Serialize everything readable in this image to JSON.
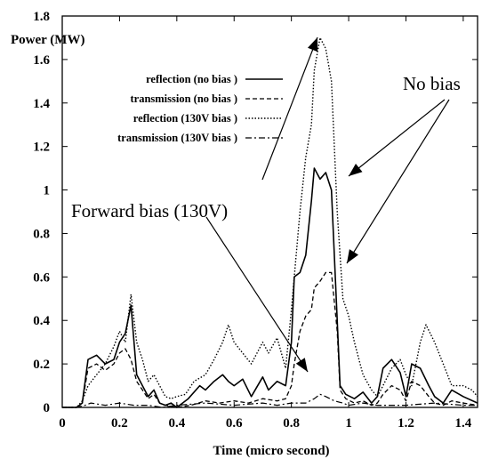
{
  "chart_data": {
    "type": "line",
    "ylabel": "Power (MW)",
    "xlabel": "Time  (micro second)",
    "xlim": [
      0,
      1.45
    ],
    "ylim": [
      0,
      1.8
    ],
    "x_ticks": [
      "0",
      "0.2",
      "0.4",
      "0.6",
      "0.8",
      "1",
      "1.2",
      "1.4"
    ],
    "x_tick_values": [
      0,
      0.2,
      0.4,
      0.6,
      0.8,
      1.0,
      1.2,
      1.4
    ],
    "y_ticks": [
      "0",
      "0.2",
      "0.4",
      "0.6",
      "0.8",
      "1",
      "1.2",
      "1.4",
      "1.6",
      "1.8"
    ],
    "y_tick_values": [
      0,
      0.2,
      0.4,
      0.6,
      0.8,
      1.0,
      1.2,
      1.4,
      1.6,
      1.8
    ],
    "legend_position": "upper-left",
    "grid": false,
    "series": [
      {
        "name": "reflection (no bias )",
        "style": "solid",
        "x": [
          0.0,
          0.05,
          0.07,
          0.09,
          0.12,
          0.15,
          0.18,
          0.2,
          0.22,
          0.24,
          0.26,
          0.28,
          0.3,
          0.32,
          0.34,
          0.36,
          0.38,
          0.4,
          0.42,
          0.44,
          0.48,
          0.5,
          0.53,
          0.56,
          0.58,
          0.6,
          0.63,
          0.66,
          0.7,
          0.72,
          0.75,
          0.78,
          0.8,
          0.81,
          0.83,
          0.85,
          0.87,
          0.88,
          0.9,
          0.92,
          0.94,
          0.96,
          0.97,
          0.99,
          1.02,
          1.05,
          1.08,
          1.1,
          1.12,
          1.15,
          1.18,
          1.2,
          1.22,
          1.25,
          1.28,
          1.3,
          1.33,
          1.36,
          1.4,
          1.45
        ],
        "y": [
          0.0,
          0.0,
          0.02,
          0.22,
          0.24,
          0.2,
          0.22,
          0.3,
          0.34,
          0.47,
          0.15,
          0.1,
          0.05,
          0.08,
          0.02,
          0.01,
          0.02,
          0.0,
          0.02,
          0.04,
          0.1,
          0.08,
          0.12,
          0.15,
          0.12,
          0.1,
          0.13,
          0.05,
          0.14,
          0.08,
          0.12,
          0.1,
          0.3,
          0.6,
          0.62,
          0.7,
          0.95,
          1.1,
          1.05,
          1.08,
          1.0,
          0.4,
          0.1,
          0.06,
          0.04,
          0.07,
          0.02,
          0.05,
          0.18,
          0.22,
          0.16,
          0.05,
          0.2,
          0.18,
          0.1,
          0.05,
          0.02,
          0.08,
          0.05,
          0.02
        ]
      },
      {
        "name": "transmission (no bias )",
        "style": "dashed",
        "x": [
          0.0,
          0.05,
          0.07,
          0.09,
          0.12,
          0.15,
          0.18,
          0.2,
          0.22,
          0.24,
          0.26,
          0.28,
          0.3,
          0.32,
          0.34,
          0.36,
          0.4,
          0.45,
          0.5,
          0.55,
          0.6,
          0.65,
          0.7,
          0.75,
          0.78,
          0.8,
          0.81,
          0.83,
          0.85,
          0.87,
          0.88,
          0.9,
          0.92,
          0.94,
          0.96,
          0.97,
          0.99,
          1.02,
          1.05,
          1.08,
          1.1,
          1.12,
          1.15,
          1.18,
          1.2,
          1.22,
          1.25,
          1.28,
          1.3,
          1.33,
          1.36,
          1.4,
          1.45
        ],
        "y": [
          0.0,
          0.0,
          0.02,
          0.18,
          0.2,
          0.17,
          0.2,
          0.25,
          0.27,
          0.22,
          0.12,
          0.08,
          0.04,
          0.06,
          0.02,
          0.01,
          0.0,
          0.01,
          0.03,
          0.02,
          0.03,
          0.02,
          0.04,
          0.03,
          0.04,
          0.1,
          0.2,
          0.35,
          0.42,
          0.45,
          0.55,
          0.58,
          0.62,
          0.62,
          0.35,
          0.08,
          0.04,
          0.02,
          0.03,
          0.01,
          0.02,
          0.06,
          0.1,
          0.08,
          0.03,
          0.12,
          0.1,
          0.05,
          0.02,
          0.01,
          0.03,
          0.02,
          0.01
        ]
      },
      {
        "name": "reflection (130V bias )",
        "style": "dotted",
        "x": [
          0.0,
          0.05,
          0.07,
          0.09,
          0.12,
          0.15,
          0.18,
          0.2,
          0.22,
          0.24,
          0.26,
          0.28,
          0.3,
          0.32,
          0.34,
          0.36,
          0.38,
          0.4,
          0.43,
          0.46,
          0.5,
          0.53,
          0.56,
          0.58,
          0.6,
          0.63,
          0.66,
          0.7,
          0.72,
          0.75,
          0.78,
          0.8,
          0.81,
          0.83,
          0.85,
          0.87,
          0.88,
          0.9,
          0.92,
          0.94,
          0.96,
          0.98,
          1.0,
          1.02,
          1.05,
          1.08,
          1.1,
          1.12,
          1.15,
          1.18,
          1.2,
          1.22,
          1.25,
          1.27,
          1.3,
          1.33,
          1.36,
          1.4,
          1.43,
          1.45
        ],
        "y": [
          0.0,
          0.0,
          0.03,
          0.1,
          0.15,
          0.2,
          0.28,
          0.35,
          0.3,
          0.52,
          0.3,
          0.22,
          0.12,
          0.15,
          0.1,
          0.05,
          0.04,
          0.05,
          0.06,
          0.12,
          0.15,
          0.22,
          0.3,
          0.38,
          0.3,
          0.25,
          0.2,
          0.3,
          0.25,
          0.32,
          0.18,
          0.45,
          0.6,
          0.9,
          1.15,
          1.3,
          1.55,
          1.7,
          1.65,
          1.5,
          0.9,
          0.5,
          0.42,
          0.3,
          0.15,
          0.08,
          0.05,
          0.1,
          0.18,
          0.22,
          0.15,
          0.1,
          0.3,
          0.38,
          0.3,
          0.2,
          0.1,
          0.1,
          0.08,
          0.05
        ]
      },
      {
        "name": "transmission (130V bias )",
        "style": "dash-dot",
        "x": [
          0.0,
          0.05,
          0.08,
          0.1,
          0.15,
          0.2,
          0.25,
          0.3,
          0.35,
          0.4,
          0.5,
          0.6,
          0.7,
          0.75,
          0.8,
          0.85,
          0.88,
          0.9,
          0.92,
          0.95,
          0.98,
          1.0,
          1.05,
          1.1,
          1.2,
          1.3,
          1.4,
          1.45
        ],
        "y": [
          0.0,
          0.0,
          0.01,
          0.02,
          0.01,
          0.02,
          0.01,
          0.01,
          0.0,
          0.01,
          0.02,
          0.01,
          0.02,
          0.01,
          0.02,
          0.02,
          0.04,
          0.06,
          0.05,
          0.03,
          0.02,
          0.01,
          0.02,
          0.01,
          0.01,
          0.02,
          0.01,
          0.01
        ]
      }
    ],
    "annotations": [
      {
        "text": "No bias"
      },
      {
        "text": "Forward bias (130V)"
      }
    ]
  }
}
